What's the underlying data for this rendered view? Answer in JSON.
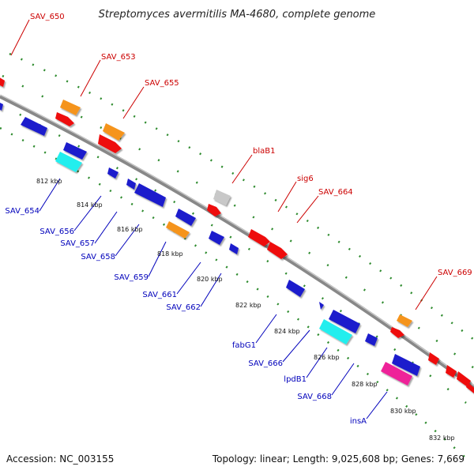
{
  "title": "Streptomyces avermitilis MA-4680, complete genome",
  "footer": {
    "accession": "Accession: NC_003155",
    "topology": "Topology: linear; Length: 9,025,608 bp; Genes: 7,669"
  },
  "scale_labels": [
    "812 kbp",
    "814 kbp",
    "816 kbp",
    "818 kbp",
    "820 kbp",
    "822 kbp",
    "824 kbp",
    "826 kbp",
    "828 kbp",
    "830 kbp",
    "832 kbp"
  ],
  "top_gene_labels": [
    "SAV_650",
    "SAV_653",
    "SAV_655",
    "blaB1",
    "sig6",
    "SAV_664",
    "SAV_669"
  ],
  "bottom_gene_labels": [
    "SAV_654",
    "SAV_656",
    "SAV_657",
    "SAV_658",
    "SAV_659",
    "SAV_661",
    "SAV_662",
    "fabG1",
    "SAV_666",
    "lpdB1",
    "SAV_668",
    "insA"
  ],
  "colors": {
    "backbone": "#888888",
    "track_dots": "#2e8b2e",
    "label_top": "#cc0000",
    "label_bottom": "#0000bb",
    "gene_red": "#ee1111",
    "gene_orange": "#f5941f",
    "gene_blue": "#1a1acc",
    "gene_cyan": "#22eeee",
    "gene_gray": "#c8c8c8",
    "gene_magenta": "#ee2299"
  }
}
